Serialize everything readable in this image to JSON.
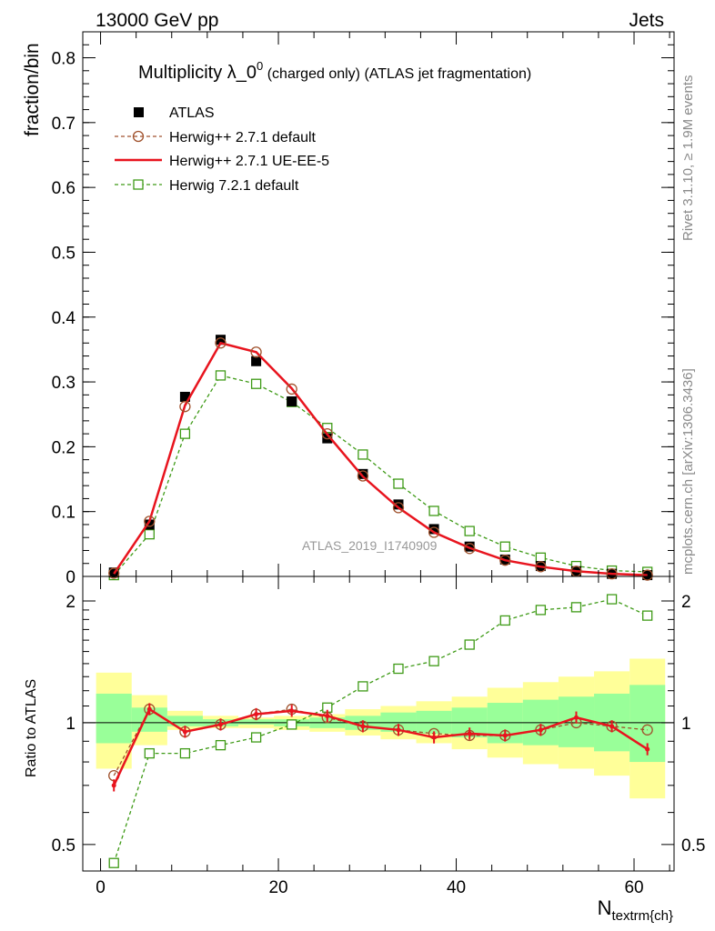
{
  "header": {
    "left": "13000 GeV pp",
    "right": "Jets"
  },
  "side_labels": {
    "rivet": "Rivet 3.1.10, ≥ 1.9M events",
    "mcplots": "mcplots.cern.ch [arXiv:1306.3436]"
  },
  "main_title": {
    "lead": "Multiplicity λ_0",
    "sup": "0",
    "rest": " (charged only) (ATLAS jet fragmentation)"
  },
  "watermark": "ATLAS_2019_I1740909",
  "x_axis_label": {
    "base": "N",
    "sub": "textrm{ch}"
  },
  "colors": {
    "atlas": "#000000",
    "herwigpp_default": "#a0522d",
    "ueee5": "#e8141e",
    "herwig721": "#3e9a16",
    "band_inner": "#99ff99",
    "band_outer": "#ffff99"
  },
  "chart_data": [
    {
      "type": "line",
      "panel": "main",
      "ylabel": "fraction/bin",
      "xlim": [
        -2,
        64.5
      ],
      "ylim": [
        0,
        0.84
      ],
      "x_ticks": [
        0,
        20,
        40,
        60
      ],
      "y_ticks": [
        0,
        0.1,
        0.2,
        0.3,
        0.4,
        0.5,
        0.6,
        0.7,
        0.8
      ],
      "y_tick_labels": [
        "0",
        "0.1",
        "0.2",
        "0.3",
        "0.4",
        "0.5",
        "0.6",
        "0.7",
        "0.8"
      ],
      "legend_position": "top-left",
      "x": [
        1.5,
        5.5,
        9.5,
        13.5,
        17.5,
        21.5,
        25.5,
        29.5,
        33.5,
        37.5,
        41.5,
        45.5,
        49.5,
        53.5,
        57.5,
        61.5
      ],
      "series": [
        {
          "name": "ATLAS",
          "style": "data",
          "values": [
            0.006,
            0.08,
            0.277,
            0.365,
            0.332,
            0.27,
            0.213,
            0.158,
            0.111,
            0.073,
            0.046,
            0.026,
            0.016,
            0.008,
            0.004,
            0.002
          ]
        },
        {
          "name": "Herwig++ 2.7.1 default",
          "style": "circle-dashed",
          "values": [
            0.005,
            0.085,
            0.262,
            0.36,
            0.346,
            0.289,
            0.22,
            0.155,
            0.106,
            0.068,
            0.043,
            0.025,
            0.015,
            0.008,
            0.004,
            0.002
          ]
        },
        {
          "name": "Herwig++ 2.7.1 UE-EE-5",
          "style": "solid",
          "values": [
            0.004,
            0.085,
            0.264,
            0.36,
            0.346,
            0.29,
            0.219,
            0.154,
            0.106,
            0.068,
            0.044,
            0.025,
            0.015,
            0.008,
            0.004,
            0.002
          ]
        },
        {
          "name": "Herwig 7.2.1 default",
          "style": "square-dashed",
          "values": [
            0.002,
            0.065,
            0.22,
            0.31,
            0.297,
            0.269,
            0.229,
            0.188,
            0.143,
            0.101,
            0.07,
            0.046,
            0.029,
            0.016,
            0.009,
            0.007
          ]
        }
      ]
    },
    {
      "type": "line",
      "panel": "ratio",
      "ylabel": "Ratio to ATLAS",
      "xlim": [
        -2,
        64.5
      ],
      "ylim": [
        0.43,
        2.3
      ],
      "x_ticks": [
        0,
        20,
        40,
        60
      ],
      "y_ticks": [
        0.5,
        1,
        2
      ],
      "y_tick_labels": [
        "0.5",
        "1",
        "2"
      ],
      "y_scale": "log",
      "x": [
        1.5,
        5.5,
        9.5,
        13.5,
        17.5,
        21.5,
        25.5,
        29.5,
        33.5,
        37.5,
        41.5,
        45.5,
        49.5,
        53.5,
        57.5,
        61.5
      ],
      "band_edges": [
        -0.5,
        3.5,
        7.5,
        11.5,
        15.5,
        19.5,
        23.5,
        27.5,
        31.5,
        35.5,
        39.5,
        43.5,
        47.5,
        51.5,
        55.5,
        59.5,
        63.5
      ],
      "bands": {
        "outer_lo": [
          0.77,
          0.88,
          0.96,
          0.97,
          0.97,
          0.96,
          0.95,
          0.93,
          0.91,
          0.89,
          0.86,
          0.82,
          0.79,
          0.77,
          0.74,
          0.65
        ],
        "outer_hi": [
          1.33,
          1.17,
          1.07,
          1.04,
          1.03,
          1.04,
          1.05,
          1.08,
          1.1,
          1.13,
          1.16,
          1.22,
          1.26,
          1.3,
          1.34,
          1.44
        ],
        "inner_lo": [
          0.89,
          0.95,
          0.98,
          0.98,
          0.99,
          0.98,
          0.97,
          0.96,
          0.95,
          0.94,
          0.92,
          0.89,
          0.88,
          0.87,
          0.85,
          0.8
        ],
        "inner_hi": [
          1.18,
          1.09,
          1.04,
          1.02,
          1.02,
          1.02,
          1.03,
          1.04,
          1.06,
          1.07,
          1.09,
          1.12,
          1.14,
          1.16,
          1.18,
          1.24
        ]
      },
      "series": [
        {
          "name": "Herwig++ 2.7.1 default",
          "style": "circle-dashed",
          "values": [
            0.74,
            1.08,
            0.95,
            0.99,
            1.05,
            1.08,
            1.03,
            0.98,
            0.96,
            0.94,
            0.93,
            0.93,
            0.96,
            1.0,
            0.98,
            0.96
          ]
        },
        {
          "name": "Herwig++ 2.7.1 UE-EE-5",
          "style": "solid",
          "values": [
            0.7,
            1.08,
            0.95,
            0.99,
            1.05,
            1.07,
            1.04,
            0.98,
            0.96,
            0.92,
            0.94,
            0.93,
            0.96,
            1.03,
            0.98,
            0.86
          ]
        },
        {
          "name": "Herwig 7.2.1 default",
          "style": "square-dashed",
          "values": [
            0.45,
            0.84,
            0.84,
            0.88,
            0.92,
            0.99,
            1.09,
            1.23,
            1.36,
            1.42,
            1.56,
            1.79,
            1.9,
            1.93,
            2.02,
            1.84
          ]
        }
      ]
    }
  ]
}
